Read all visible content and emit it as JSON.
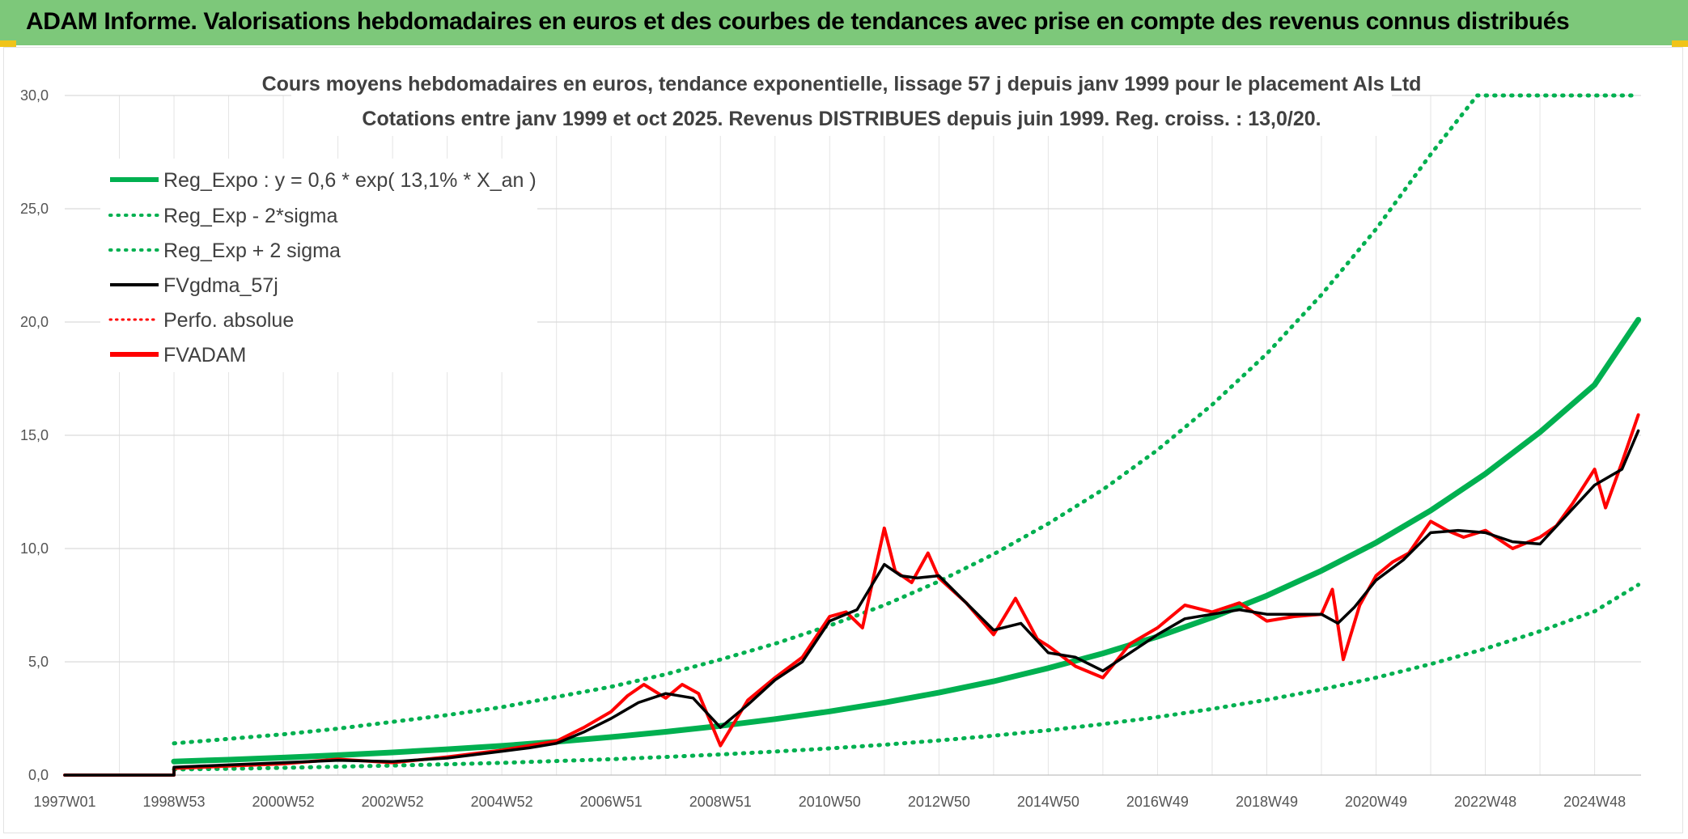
{
  "header": {
    "title": "ADAM Informe. Valorisations hebdomadaires en euros et des courbes de tendances avec prise en compte des revenus connus distribués"
  },
  "colors": {
    "header_bg": "#7dc87a",
    "reg": "#00b050",
    "fv57": "#000000",
    "fvadam": "#ff0000",
    "grid": "#d9d9d9"
  },
  "chart_data": {
    "type": "line",
    "title_lines": [
      "Cours moyens hebdomadaires en euros, tendance exponentielle, lissage 57 j depuis janv 1999 pour le placement Als Ltd",
      "Cotations entre janv 1999 et oct 2025. Revenus DISTRIBUES depuis juin 1999. Reg. croiss. : 13,0/20."
    ],
    "xlim": [
      1997.0,
      2025.85
    ],
    "ylim": [
      0,
      30
    ],
    "y_ticks": [
      0,
      5,
      10,
      15,
      20,
      25,
      30
    ],
    "y_tick_labels": [
      "0,0",
      "5,0",
      "10,0",
      "15,0",
      "20,0",
      "25,0",
      "30,0"
    ],
    "x_ticks": [
      {
        "label": "1997W01",
        "x": 1997.0
      },
      {
        "label": "1998W53",
        "x": 1999.0
      },
      {
        "label": "2000W52",
        "x": 2001.0
      },
      {
        "label": "2002W52",
        "x": 2003.0
      },
      {
        "label": "2004W52",
        "x": 2005.0
      },
      {
        "label": "2006W51",
        "x": 2007.0
      },
      {
        "label": "2008W51",
        "x": 2009.0
      },
      {
        "label": "2010W50",
        "x": 2011.0
      },
      {
        "label": "2012W50",
        "x": 2013.0
      },
      {
        "label": "2014W50",
        "x": 2015.0
      },
      {
        "label": "2016W49",
        "x": 2017.0
      },
      {
        "label": "2018W49",
        "x": 2019.0
      },
      {
        "label": "2020W49",
        "x": 2021.0
      },
      {
        "label": "2022W48",
        "x": 2023.0
      },
      {
        "label": "2024W48",
        "x": 2025.0
      }
    ],
    "legend": [
      {
        "key": "reg",
        "label": "Reg_Expo : y = 0,6 * exp( 13,1% *  X_an )"
      },
      {
        "key": "reg_minus",
        "label": "Reg_Exp - 2*sigma"
      },
      {
        "key": "reg_plus",
        "label": "Reg_Exp + 2 sigma"
      },
      {
        "key": "fv57",
        "label": "FVgdma_57j"
      },
      {
        "key": "perfo",
        "label": "Perfo. absolue"
      },
      {
        "key": "fvadam",
        "label": "FVADAM"
      }
    ],
    "series": [
      {
        "name": "Reg_Expo",
        "style": "solid-thick",
        "x": [
          1999.0,
          2000.0,
          2001.0,
          2002.0,
          2003.0,
          2004.0,
          2005.0,
          2006.0,
          2007.0,
          2008.0,
          2009.0,
          2010.0,
          2011.0,
          2012.0,
          2013.0,
          2014.0,
          2015.0,
          2016.0,
          2017.0,
          2018.0,
          2019.0,
          2020.0,
          2021.0,
          2022.0,
          2023.0,
          2024.0,
          2025.0,
          2025.8
        ],
        "values": [
          0.6,
          0.68,
          0.77,
          0.88,
          1.0,
          1.14,
          1.29,
          1.47,
          1.68,
          1.91,
          2.17,
          2.47,
          2.81,
          3.2,
          3.64,
          4.14,
          4.72,
          5.37,
          6.11,
          6.96,
          7.92,
          9.02,
          10.26,
          11.68,
          13.3,
          15.14,
          17.23,
          20.1
        ]
      },
      {
        "name": "Reg_Exp - 2*sigma",
        "style": "dotted",
        "x": [
          1999.0,
          2000.0,
          2001.0,
          2002.0,
          2003.0,
          2004.0,
          2005.0,
          2006.0,
          2007.0,
          2008.0,
          2009.0,
          2010.0,
          2011.0,
          2012.0,
          2013.0,
          2014.0,
          2015.0,
          2016.0,
          2017.0,
          2018.0,
          2019.0,
          2020.0,
          2021.0,
          2022.0,
          2023.0,
          2024.0,
          2025.0,
          2025.8
        ],
        "values": [
          0.25,
          0.28,
          0.32,
          0.37,
          0.42,
          0.48,
          0.54,
          0.62,
          0.7,
          0.8,
          0.91,
          1.04,
          1.18,
          1.34,
          1.53,
          1.74,
          1.98,
          2.25,
          2.56,
          2.92,
          3.32,
          3.78,
          4.3,
          4.9,
          5.58,
          6.35,
          7.23,
          8.4
        ]
      },
      {
        "name": "Reg_Exp + 2 sigma",
        "style": "dotted",
        "x": [
          1999.0,
          2000.0,
          2001.0,
          2002.0,
          2003.0,
          2004.0,
          2005.0,
          2006.0,
          2007.0,
          2008.0,
          2009.0,
          2010.0,
          2011.0,
          2012.0,
          2013.0,
          2014.0,
          2015.0,
          2016.0,
          2017.0,
          2018.0,
          2019.0,
          2020.0,
          2021.0,
          2022.0,
          2023.0,
          2022.85,
          2024.0,
          2025.0,
          2025.8
        ],
        "values": [
          1.4,
          1.6,
          1.8,
          2.05,
          2.35,
          2.65,
          3.0,
          3.45,
          3.9,
          4.45,
          5.1,
          5.8,
          6.6,
          7.5,
          8.55,
          9.75,
          11.1,
          12.6,
          14.35,
          16.35,
          18.6,
          21.2,
          24.1,
          27.4,
          30.0,
          30.0,
          30.0,
          30.0,
          30.0
        ]
      },
      {
        "name": "FVgdma_57j",
        "style": "solid",
        "x": [
          1997.0,
          1999.0,
          1999.0,
          2000.0,
          2001.0,
          2002.0,
          2003.0,
          2004.0,
          2005.0,
          2005.5,
          2006.0,
          2006.5,
          2007.0,
          2007.5,
          2008.0,
          2008.5,
          2009.0,
          2009.5,
          2010.0,
          2010.5,
          2011.0,
          2011.5,
          2012.0,
          2012.3,
          2012.6,
          2013.0,
          2013.5,
          2014.0,
          2014.5,
          2015.0,
          2015.5,
          2016.0,
          2016.5,
          2017.0,
          2017.5,
          2018.0,
          2018.5,
          2019.0,
          2019.5,
          2020.0,
          2020.3,
          2020.6,
          2021.0,
          2021.5,
          2022.0,
          2022.5,
          2023.0,
          2023.5,
          2024.0,
          2024.5,
          2025.0,
          2025.5,
          2025.8
        ],
        "values": [
          0,
          0,
          0.35,
          0.45,
          0.55,
          0.65,
          0.6,
          0.75,
          1.05,
          1.2,
          1.4,
          1.9,
          2.5,
          3.2,
          3.6,
          3.4,
          2.1,
          3.1,
          4.2,
          5.0,
          6.8,
          7.3,
          9.3,
          8.8,
          8.7,
          8.8,
          7.6,
          6.4,
          6.7,
          5.4,
          5.2,
          4.6,
          5.4,
          6.2,
          6.9,
          7.1,
          7.3,
          7.1,
          7.1,
          7.1,
          6.7,
          7.4,
          8.6,
          9.5,
          10.7,
          10.8,
          10.7,
          10.3,
          10.2,
          11.5,
          12.8,
          13.5,
          15.2
        ]
      },
      {
        "name": "FVADAM",
        "style": "solid-thick",
        "x": [
          1997.0,
          1999.0,
          1999.0,
          2000.0,
          2001.0,
          2002.0,
          2003.0,
          2004.0,
          2005.0,
          2005.5,
          2006.0,
          2006.5,
          2007.0,
          2007.3,
          2007.6,
          2008.0,
          2008.3,
          2008.6,
          2009.0,
          2009.5,
          2010.0,
          2010.5,
          2011.0,
          2011.3,
          2011.6,
          2012.0,
          2012.2,
          2012.5,
          2012.8,
          2013.0,
          2013.5,
          2014.0,
          2014.4,
          2014.8,
          2015.0,
          2015.5,
          2016.0,
          2016.5,
          2017.0,
          2017.5,
          2018.0,
          2018.5,
          2019.0,
          2019.5,
          2020.0,
          2020.2,
          2020.4,
          2020.7,
          2021.0,
          2021.3,
          2021.6,
          2022.0,
          2022.3,
          2022.6,
          2023.0,
          2023.5,
          2024.0,
          2024.3,
          2024.6,
          2025.0,
          2025.2,
          2025.5,
          2025.8
        ],
        "values": [
          0,
          0,
          0.3,
          0.4,
          0.5,
          0.7,
          0.55,
          0.8,
          1.1,
          1.3,
          1.5,
          2.1,
          2.8,
          3.5,
          4.0,
          3.4,
          4.0,
          3.6,
          1.3,
          3.3,
          4.3,
          5.2,
          7.0,
          7.2,
          6.5,
          10.9,
          9.0,
          8.5,
          9.8,
          8.7,
          7.6,
          6.2,
          7.8,
          6.0,
          5.7,
          4.8,
          4.3,
          5.8,
          6.5,
          7.5,
          7.2,
          7.6,
          6.8,
          7.0,
          7.1,
          8.2,
          5.1,
          7.5,
          8.8,
          9.4,
          9.8,
          11.2,
          10.8,
          10.5,
          10.8,
          10.0,
          10.5,
          11.0,
          12.0,
          13.5,
          11.8,
          13.8,
          15.9
        ]
      }
    ]
  }
}
